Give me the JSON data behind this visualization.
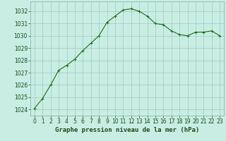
{
  "x": [
    0,
    1,
    2,
    3,
    4,
    5,
    6,
    7,
    8,
    9,
    10,
    11,
    12,
    13,
    14,
    15,
    16,
    17,
    18,
    19,
    20,
    21,
    22,
    23
  ],
  "y": [
    1024.1,
    1024.9,
    1026.0,
    1027.2,
    1027.6,
    1028.1,
    1028.8,
    1029.4,
    1030.0,
    1031.1,
    1031.6,
    1032.1,
    1032.2,
    1032.0,
    1031.6,
    1031.0,
    1030.9,
    1030.4,
    1030.1,
    1030.0,
    1030.3,
    1030.3,
    1030.4,
    1030.0
  ],
  "line_color": "#1a6b1a",
  "marker": "+",
  "marker_size": 3,
  "bg_color": "#c8eee4",
  "grid_color": "#a0c8be",
  "title": "Graphe pression niveau de la mer (hPa)",
  "ylim_min": 1023.5,
  "ylim_max": 1032.8,
  "yticks": [
    1024,
    1025,
    1026,
    1027,
    1028,
    1029,
    1030,
    1031,
    1032
  ],
  "xticks": [
    0,
    1,
    2,
    3,
    4,
    5,
    6,
    7,
    8,
    9,
    10,
    11,
    12,
    13,
    14,
    15,
    16,
    17,
    18,
    19,
    20,
    21,
    22,
    23
  ],
  "tick_fontsize": 5.5,
  "title_fontsize": 6.5,
  "title_fontweight": "bold",
  "line_width": 0.8,
  "marker_edge_width": 0.7
}
